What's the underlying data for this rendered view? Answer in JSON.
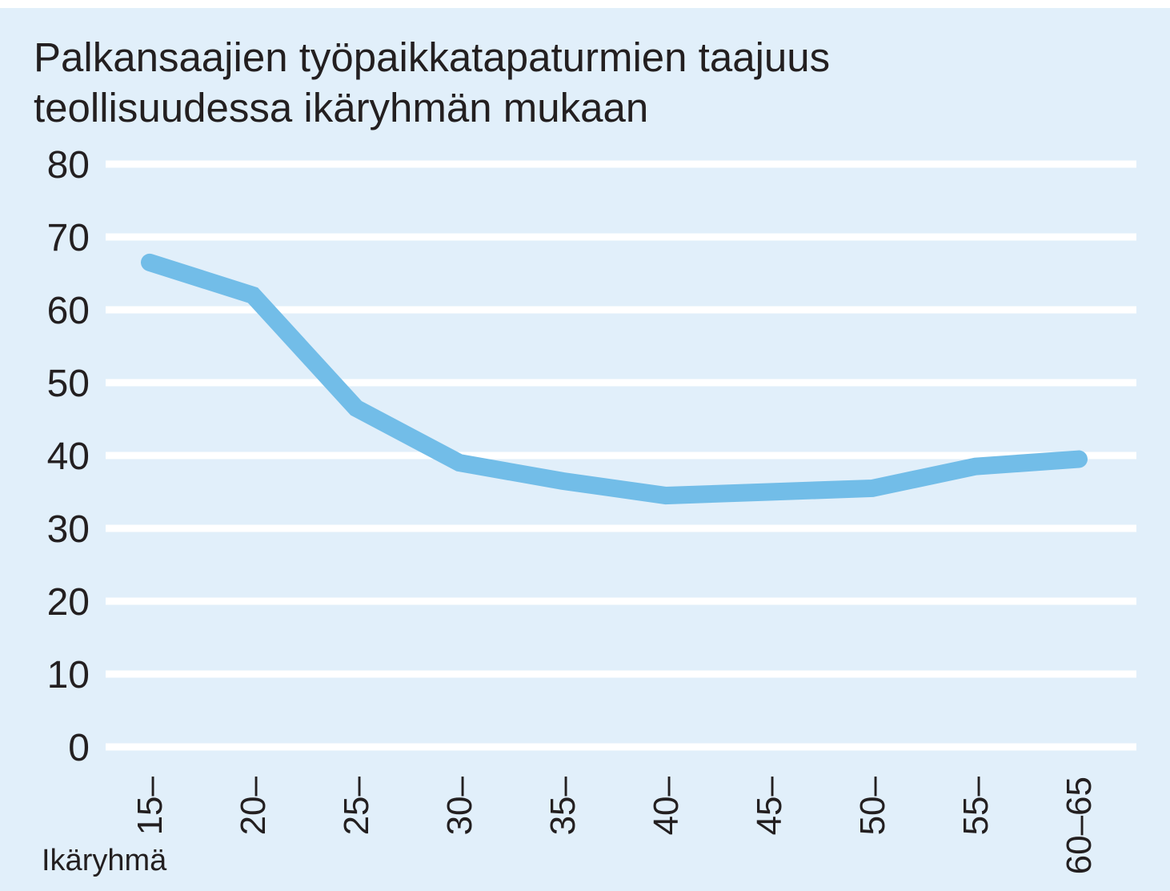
{
  "chart_data": {
    "type": "line",
    "title": "Palkansaajien työpaikkatapaturmien taajuus",
    "subtitle": "teollisuudessa ikäryhmän mukaan",
    "xlabel": "Ikäryhmä",
    "ylabel": "",
    "categories": [
      "15–",
      "20–",
      "25–",
      "30–",
      "35–",
      "40–",
      "45–",
      "50–",
      "55–",
      "60–65"
    ],
    "series": [
      {
        "values": [
          66.5,
          62,
          46.5,
          39,
          36.5,
          34.5,
          35,
          35.5,
          38.5,
          39.5
        ]
      }
    ],
    "yticks": [
      "0",
      "10",
      "20",
      "30",
      "40",
      "50",
      "60",
      "70",
      "80"
    ],
    "ylim": [
      0,
      80
    ],
    "grid": true,
    "legend": "none",
    "colors": {
      "background": "#e1effa",
      "gridline": "#ffffff",
      "line": "#72bde8",
      "text": "#231f20"
    }
  }
}
